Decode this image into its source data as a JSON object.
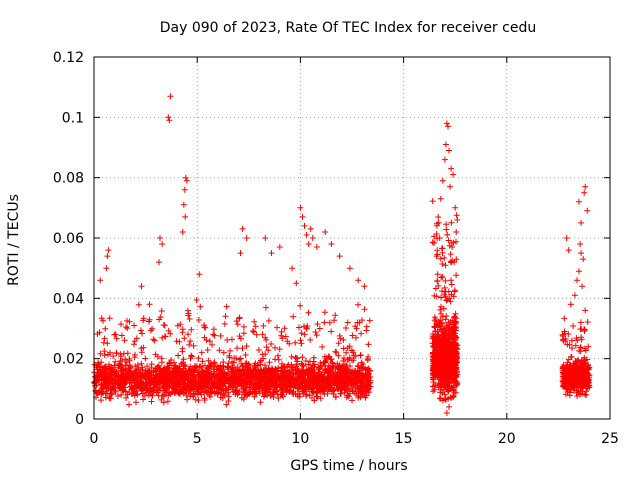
{
  "chart_data": {
    "type": "scatter",
    "title": "Day 090 of 2023, Rate Of TEC Index for receiver cedu",
    "xlabel": "GPS time / hours",
    "ylabel": "ROTI / TECUs",
    "xlim": [
      0,
      25
    ],
    "ylim": [
      0,
      0.12
    ],
    "x_ticks": [
      0,
      5,
      10,
      15,
      20,
      25
    ],
    "y_ticks": [
      0,
      0.02,
      0.04,
      0.06,
      0.08,
      0.1,
      0.12
    ],
    "x_tick_labels": [
      "0",
      "5",
      "10",
      "15",
      "20",
      "25"
    ],
    "y_tick_labels": [
      "0",
      "0.02",
      "0.04",
      "0.06",
      "0.08",
      "0.1",
      "0.12"
    ],
    "grid": true,
    "marker": "+",
    "marker_color": "#ff0000",
    "clusters": [
      {
        "x_range": [
          0.0,
          13.4
        ],
        "y_base": 0.013,
        "y_spread": 0.006,
        "count": 2600
      },
      {
        "x_range": [
          16.4,
          17.6
        ],
        "y_base": 0.02,
        "y_spread": 0.012,
        "count": 800
      },
      {
        "x_range": [
          22.7,
          24.0
        ],
        "y_base": 0.014,
        "y_spread": 0.005,
        "count": 500
      }
    ],
    "peak_points": [
      {
        "x": 3.7,
        "y": 0.107
      },
      {
        "x": 3.6,
        "y": 0.1
      },
      {
        "x": 3.65,
        "y": 0.099
      },
      {
        "x": 4.45,
        "y": 0.08
      },
      {
        "x": 4.5,
        "y": 0.079
      },
      {
        "x": 4.4,
        "y": 0.076
      },
      {
        "x": 4.35,
        "y": 0.071
      },
      {
        "x": 4.42,
        "y": 0.067
      },
      {
        "x": 4.3,
        "y": 0.062
      },
      {
        "x": 3.2,
        "y": 0.06
      },
      {
        "x": 3.3,
        "y": 0.058
      },
      {
        "x": 3.15,
        "y": 0.052
      },
      {
        "x": 0.7,
        "y": 0.056
      },
      {
        "x": 0.65,
        "y": 0.054
      },
      {
        "x": 0.6,
        "y": 0.05
      },
      {
        "x": 0.3,
        "y": 0.046
      },
      {
        "x": 2.3,
        "y": 0.044
      },
      {
        "x": 5.1,
        "y": 0.048
      },
      {
        "x": 7.2,
        "y": 0.063
      },
      {
        "x": 7.4,
        "y": 0.06
      },
      {
        "x": 7.1,
        "y": 0.055
      },
      {
        "x": 8.3,
        "y": 0.06
      },
      {
        "x": 8.6,
        "y": 0.055
      },
      {
        "x": 9.0,
        "y": 0.057
      },
      {
        "x": 9.6,
        "y": 0.05
      },
      {
        "x": 9.8,
        "y": 0.045
      },
      {
        "x": 10.0,
        "y": 0.07
      },
      {
        "x": 10.1,
        "y": 0.067
      },
      {
        "x": 10.2,
        "y": 0.064
      },
      {
        "x": 10.3,
        "y": 0.061
      },
      {
        "x": 10.4,
        "y": 0.058
      },
      {
        "x": 10.5,
        "y": 0.063
      },
      {
        "x": 10.6,
        "y": 0.06
      },
      {
        "x": 10.8,
        "y": 0.057
      },
      {
        "x": 11.2,
        "y": 0.062
      },
      {
        "x": 11.5,
        "y": 0.058
      },
      {
        "x": 11.9,
        "y": 0.054
      },
      {
        "x": 12.4,
        "y": 0.05
      },
      {
        "x": 12.8,
        "y": 0.046
      },
      {
        "x": 13.1,
        "y": 0.044
      },
      {
        "x": 17.1,
        "y": 0.098
      },
      {
        "x": 17.15,
        "y": 0.097
      },
      {
        "x": 17.05,
        "y": 0.091
      },
      {
        "x": 17.2,
        "y": 0.089
      },
      {
        "x": 17.0,
        "y": 0.086
      },
      {
        "x": 17.3,
        "y": 0.083
      },
      {
        "x": 17.4,
        "y": 0.081
      },
      {
        "x": 16.9,
        "y": 0.079
      },
      {
        "x": 17.25,
        "y": 0.077
      },
      {
        "x": 16.8,
        "y": 0.073
      },
      {
        "x": 17.5,
        "y": 0.07
      },
      {
        "x": 17.6,
        "y": 0.066
      },
      {
        "x": 16.7,
        "y": 0.065
      },
      {
        "x": 17.55,
        "y": 0.062
      },
      {
        "x": 16.75,
        "y": 0.06
      },
      {
        "x": 17.35,
        "y": 0.057
      },
      {
        "x": 16.6,
        "y": 0.054
      },
      {
        "x": 17.45,
        "y": 0.052
      },
      {
        "x": 16.65,
        "y": 0.048
      },
      {
        "x": 17.3,
        "y": 0.046
      },
      {
        "x": 17.2,
        "y": 0.004
      },
      {
        "x": 17.1,
        "y": 0.002
      },
      {
        "x": 23.8,
        "y": 0.077
      },
      {
        "x": 23.75,
        "y": 0.075
      },
      {
        "x": 23.5,
        "y": 0.072
      },
      {
        "x": 23.9,
        "y": 0.069
      },
      {
        "x": 23.6,
        "y": 0.065
      },
      {
        "x": 22.9,
        "y": 0.06
      },
      {
        "x": 23.55,
        "y": 0.058
      },
      {
        "x": 23.0,
        "y": 0.056
      },
      {
        "x": 23.6,
        "y": 0.055
      },
      {
        "x": 23.7,
        "y": 0.053
      },
      {
        "x": 23.5,
        "y": 0.049
      },
      {
        "x": 23.4,
        "y": 0.046
      },
      {
        "x": 23.65,
        "y": 0.044
      },
      {
        "x": 23.3,
        "y": 0.041
      },
      {
        "x": 23.1,
        "y": 0.038
      },
      {
        "x": 23.8,
        "y": 0.036
      }
    ]
  }
}
